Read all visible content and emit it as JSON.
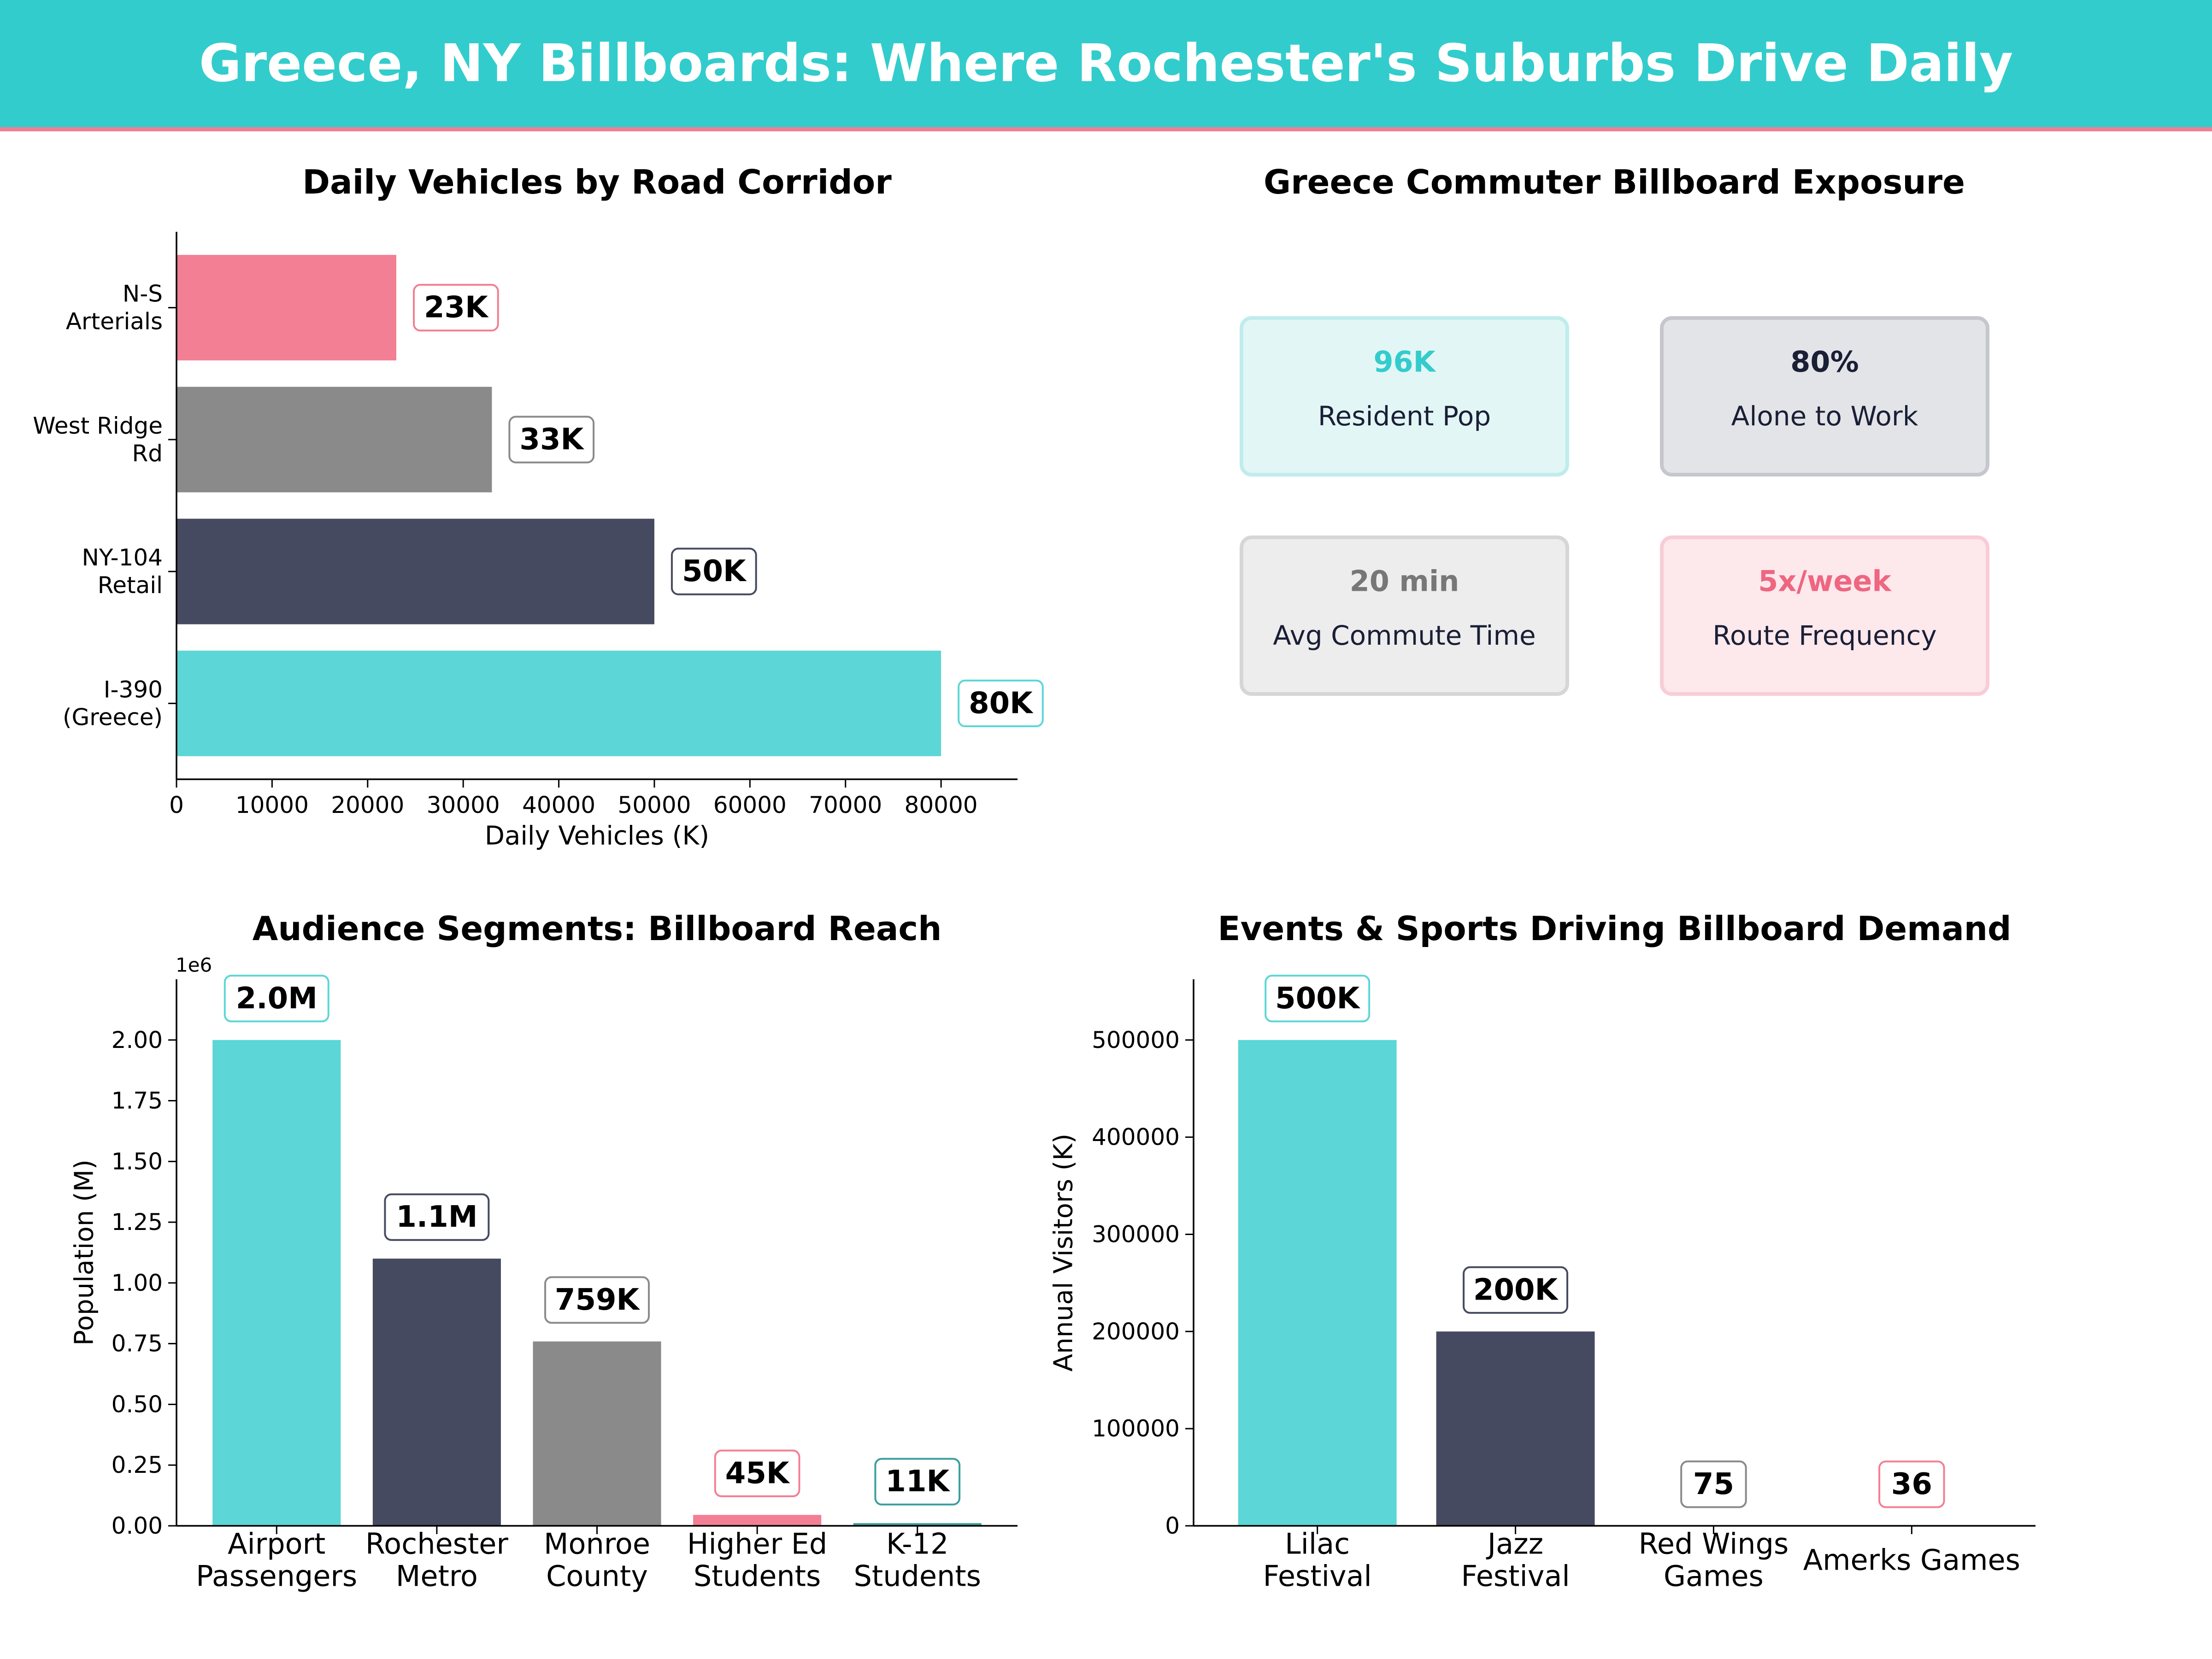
{
  "header": {
    "title": "Greece, NY Billboards: Where Rochester's Suburbs Drive Daily"
  },
  "colors": {
    "header_bg": "#33cccc",
    "header_line": "#f07f94",
    "teal": "#5cd6d6",
    "navy": "#464a60",
    "gray": "#8a8a8a",
    "pink": "#f27f94",
    "dark_teal": "#3a9e9e"
  },
  "chart_data": [
    {
      "type": "bar",
      "orientation": "horizontal",
      "title": "Daily Vehicles by Road Corridor",
      "xlabel": "Daily Vehicles (K)",
      "ylabel": "",
      "categories": [
        "I-390\n(Greece)",
        "NY-104\nRetail",
        "West Ridge\nRd",
        "N-S\nArterials"
      ],
      "values": [
        80000,
        50000,
        33000,
        23000
      ],
      "data_labels": [
        "80K",
        "50K",
        "33K",
        "23K"
      ],
      "bar_colors": [
        "#5cd6d6",
        "#464a60",
        "#8a8a8a",
        "#f27f94"
      ],
      "label_edge_colors": [
        "#5cd6d6",
        "#464a60",
        "#8a8a8a",
        "#f27f94"
      ],
      "xlim": [
        0,
        88000
      ],
      "xticks": [
        0,
        10000,
        20000,
        30000,
        40000,
        50000,
        60000,
        70000,
        80000
      ],
      "grid": false
    },
    {
      "type": "table",
      "title": "Greece Commuter Billboard Exposure",
      "cards": [
        {
          "value": "96K",
          "label": "Resident Pop",
          "color": "#33cccc",
          "bg": "#e3f6f6",
          "border": "#bfecec"
        },
        {
          "value": "80%",
          "label": "Alone to Work",
          "color": "#1a1f36",
          "bg": "#e3e4e8",
          "border": "#c6c7cd"
        },
        {
          "value": "20 min",
          "label": "Avg Commute Time",
          "color": "#777777",
          "bg": "#ededed",
          "border": "#d6d6d6"
        },
        {
          "value": "5x/week",
          "label": "Route Frequency",
          "color": "#ee6680",
          "bg": "#fde8ec",
          "border": "#f8cdd6"
        }
      ]
    },
    {
      "type": "bar",
      "title": "Audience Segments: Billboard Reach",
      "xlabel": "",
      "ylabel": "Population (M)",
      "offset_text": "1e6",
      "categories": [
        "Airport\nPassengers",
        "Rochester\nMetro",
        "Monroe\nCounty",
        "Higher Ed\nStudents",
        "K-12\nStudents"
      ],
      "values": [
        2000000,
        1100000,
        759000,
        45000,
        11000
      ],
      "data_labels": [
        "2.0M",
        "1.1M",
        "759K",
        "45K",
        "11K"
      ],
      "bar_colors": [
        "#5cd6d6",
        "#464a60",
        "#8a8a8a",
        "#f27f94",
        "#3a9e9e"
      ],
      "label_edge_colors": [
        "#5cd6d6",
        "#464a60",
        "#8a8a8a",
        "#f27f94",
        "#3a9e9e"
      ],
      "ylim": [
        0,
        2250000
      ],
      "yticks": [
        0,
        250000,
        500000,
        750000,
        1000000,
        1250000,
        1500000,
        1750000,
        2000000
      ],
      "ytick_labels": [
        "0.00",
        "0.25",
        "0.50",
        "0.75",
        "1.00",
        "1.25",
        "1.50",
        "1.75",
        "2.00"
      ],
      "grid": false
    },
    {
      "type": "bar",
      "title": "Events & Sports Driving Billboard Demand",
      "xlabel": "",
      "ylabel": "Annual Visitors (K)",
      "categories": [
        "Lilac\nFestival",
        "Jazz\nFestival",
        "Red Wings\nGames",
        "Amerks Games"
      ],
      "values": [
        500000,
        200000,
        75,
        36
      ],
      "data_labels": [
        "500K",
        "200K",
        "75",
        "36"
      ],
      "bar_colors": [
        "#5cd6d6",
        "#464a60",
        "#8a8a8a",
        "#f27f94"
      ],
      "label_edge_colors": [
        "#5cd6d6",
        "#464a60",
        "#8a8a8a",
        "#f27f94"
      ],
      "ylim": [
        0,
        562500
      ],
      "yticks": [
        0,
        100000,
        200000,
        300000,
        400000,
        500000
      ],
      "grid": false
    }
  ]
}
